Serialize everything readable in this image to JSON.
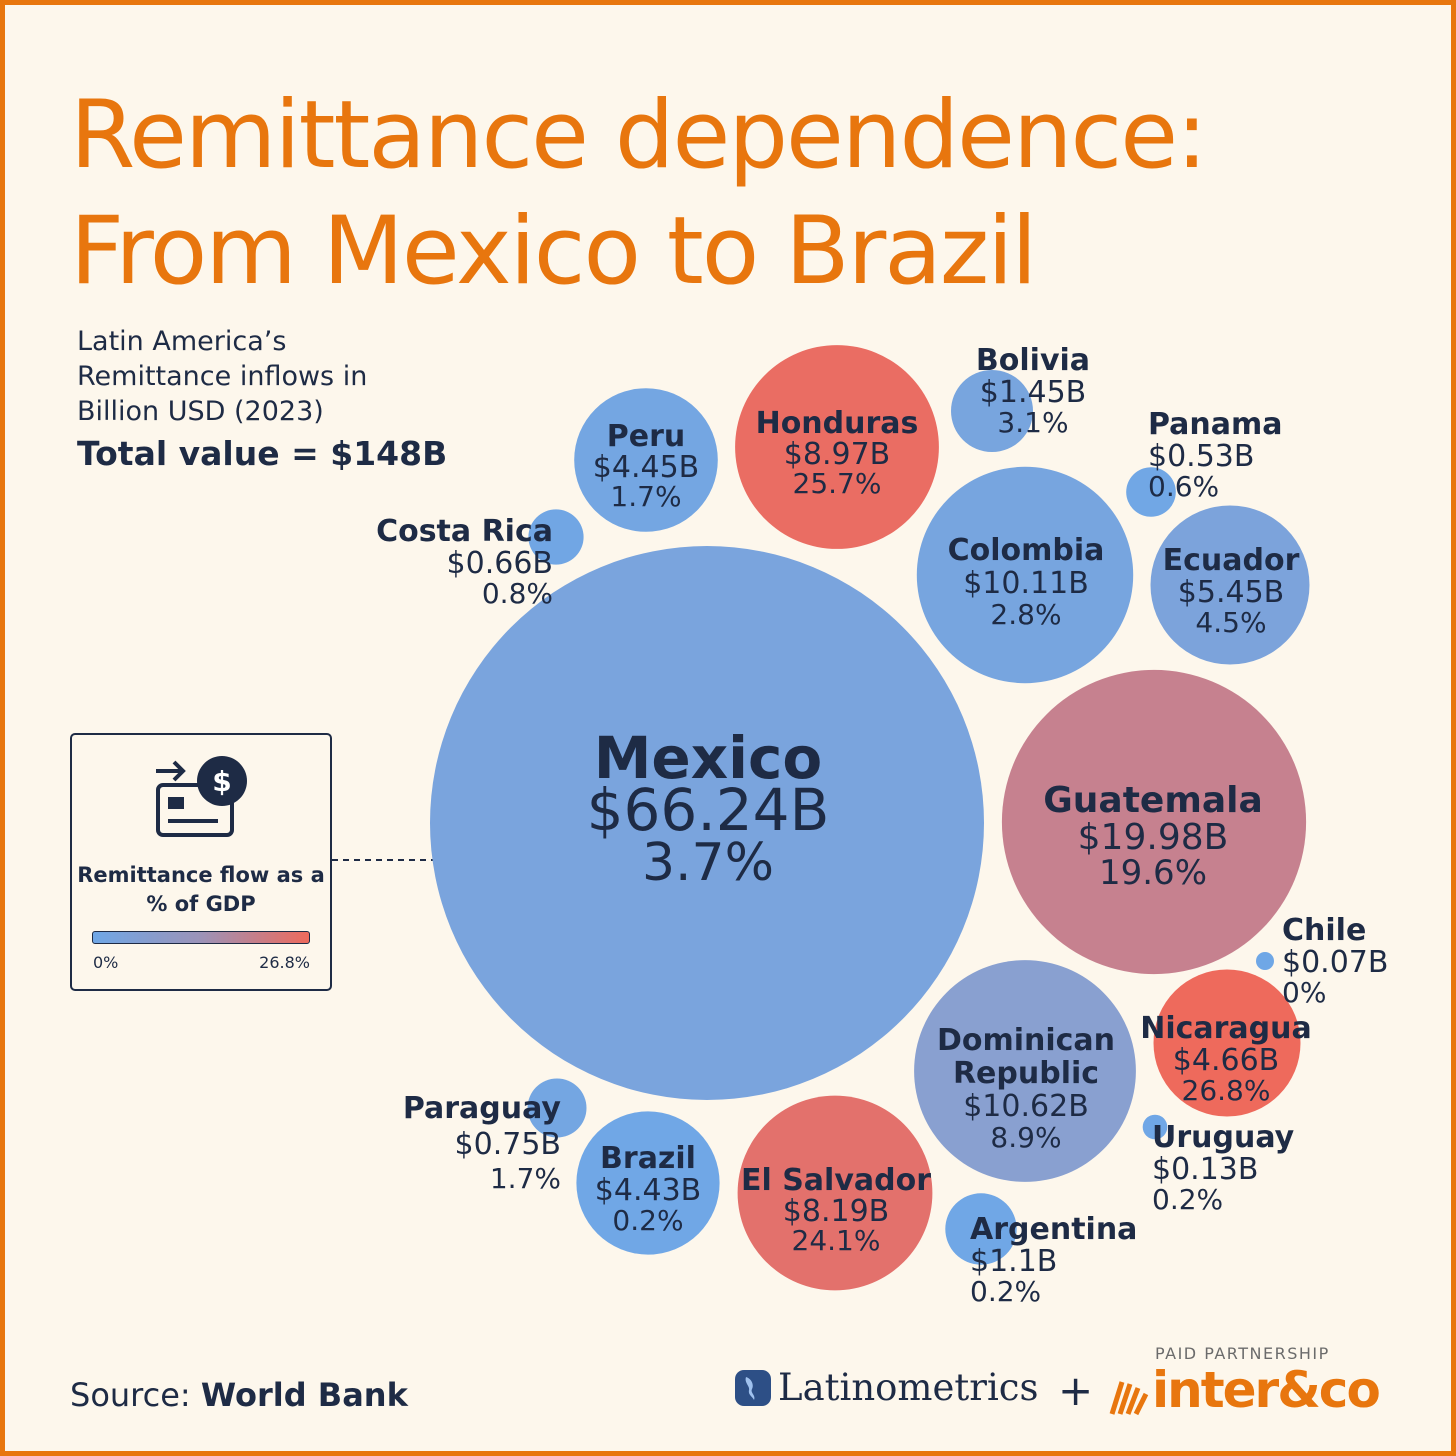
{
  "title": "Remittance dependence: From Mexico to Brazil",
  "subtitle": "Latin America’s Remittance inflows in Billion USD (2023)",
  "total": "Total value = $148B",
  "legend": {
    "title": "Remittance flow as a % of GDP",
    "min_label": "0%",
    "max_label": "26.8%",
    "min_color": "#6fa7e6",
    "max_color": "#ee6a5c"
  },
  "source_prefix": "Source:",
  "source_name": "World Bank",
  "partner_caption": "PAID PARTNERSHIP",
  "brand_latinometrics": "Latinometrics",
  "plus": "+",
  "brand_inter": "inter&co",
  "chart_data": {
    "type": "bubble",
    "title": "Remittance dependence: From Mexico to Brazil",
    "unit": "Billion USD (2023)",
    "color_scale": {
      "metric": "remittance % of GDP",
      "min": 0,
      "max": 26.8
    },
    "series": [
      {
        "name": "Mexico",
        "value_label": "$66.24B",
        "pct_label": "3.7%",
        "value": 66.24,
        "pct_gdp": 3.7
      },
      {
        "name": "Guatemala",
        "value_label": "$19.98B",
        "pct_label": "19.6%",
        "value": 19.98,
        "pct_gdp": 19.6
      },
      {
        "name": "Dominican Republic",
        "value_label": "$10.62B",
        "pct_label": "8.9%",
        "value": 10.62,
        "pct_gdp": 8.9
      },
      {
        "name": "Colombia",
        "value_label": "$10.11B",
        "pct_label": "2.8%",
        "value": 10.11,
        "pct_gdp": 2.8
      },
      {
        "name": "Honduras",
        "value_label": "$8.97B",
        "pct_label": "25.7%",
        "value": 8.97,
        "pct_gdp": 25.7
      },
      {
        "name": "El Salvador",
        "value_label": "$8.19B",
        "pct_label": "24.1%",
        "value": 8.19,
        "pct_gdp": 24.1
      },
      {
        "name": "Ecuador",
        "value_label": "$5.45B",
        "pct_label": "4.5%",
        "value": 5.45,
        "pct_gdp": 4.5
      },
      {
        "name": "Nicaragua",
        "value_label": "$4.66B",
        "pct_label": "26.8%",
        "value": 4.66,
        "pct_gdp": 26.8
      },
      {
        "name": "Peru",
        "value_label": "$4.45B",
        "pct_label": "1.7%",
        "value": 4.45,
        "pct_gdp": 1.7
      },
      {
        "name": "Brazil",
        "value_label": "$4.43B",
        "pct_label": "0.2%",
        "value": 4.43,
        "pct_gdp": 0.2
      },
      {
        "name": "Bolivia",
        "value_label": "$1.45B",
        "pct_label": "3.1%",
        "value": 1.45,
        "pct_gdp": 3.1
      },
      {
        "name": "Argentina",
        "value_label": "$1.1B",
        "pct_label": "0.2%",
        "value": 1.1,
        "pct_gdp": 0.2
      },
      {
        "name": "Paraguay",
        "value_label": "$0.75B",
        "pct_label": "1.7%",
        "value": 0.75,
        "pct_gdp": 1.7
      },
      {
        "name": "Costa Rica",
        "value_label": "$0.66B",
        "pct_label": "0.8%",
        "value": 0.66,
        "pct_gdp": 0.8
      },
      {
        "name": "Panama",
        "value_label": "$0.53B",
        "pct_label": "0.6%",
        "value": 0.53,
        "pct_gdp": 0.6
      },
      {
        "name": "Uruguay",
        "value_label": "$0.13B",
        "pct_label": "0.2%",
        "value": 0.13,
        "pct_gdp": 0.2
      },
      {
        "name": "Chile",
        "value_label": "$0.07B",
        "pct_label": "0%",
        "value": 0.07,
        "pct_gdp": 0
      }
    ]
  }
}
